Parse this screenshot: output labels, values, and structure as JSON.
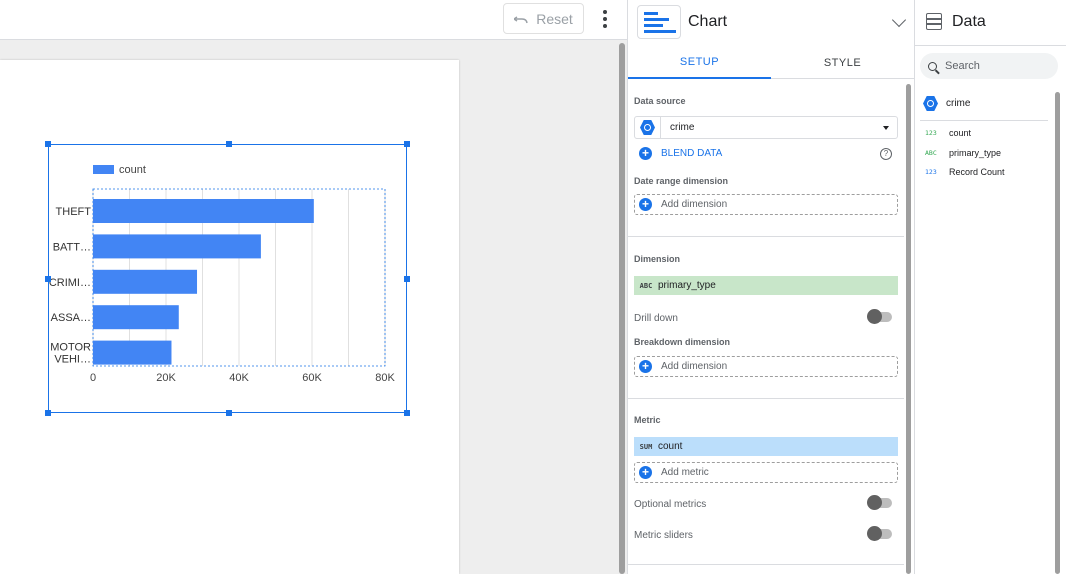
{
  "toolbar": {
    "reset_label": "Reset"
  },
  "chart_data": {
    "type": "bar",
    "orientation": "horizontal",
    "categories": [
      "THEFT",
      "BATT…",
      "CRIMI…",
      "ASSA…",
      "MOTOR VEHI…"
    ],
    "series": [
      {
        "name": "count",
        "color": "#4285f4",
        "values": [
          60500,
          46000,
          28500,
          23500,
          21500
        ]
      }
    ],
    "x_ticks": [
      "0",
      "20K",
      "40K",
      "60K",
      "80K"
    ],
    "xlim": [
      0,
      80000
    ],
    "grid": true,
    "legend": "top-left"
  },
  "properties": {
    "title": "Chart",
    "tabs": [
      {
        "label": "SETUP",
        "active": true
      },
      {
        "label": "STYLE",
        "active": false
      }
    ],
    "data_source_label": "Data source",
    "data_source_value": "crime",
    "blend_label": "BLEND DATA",
    "help_icon": "?",
    "date_range_label": "Date range dimension",
    "add_dimension": "Add dimension",
    "dimension_label": "Dimension",
    "dimension_type": "ABC",
    "dimension_value": "primary_type",
    "drill_down_label": "Drill down",
    "breakdown_label": "Breakdown dimension",
    "metric_label": "Metric",
    "metric_agg": "SUM",
    "metric_value": "count",
    "add_metric": "Add metric",
    "optional_metrics_label": "Optional metrics",
    "metric_sliders_label": "Metric sliders",
    "colors": {
      "dimension_chip": "#c8e6c9",
      "metric_chip": "#bbdefb",
      "accent": "#1a73e8"
    }
  },
  "data_panel": {
    "title": "Data",
    "search_placeholder": "Search",
    "source": "crime",
    "fields": [
      {
        "type": "123",
        "name": "count",
        "color": "#34a853"
      },
      {
        "type": "ABC",
        "name": "primary_type",
        "color": "#34a853"
      },
      {
        "type": "123",
        "name": "Record Count",
        "color": "#1a73e8"
      }
    ]
  }
}
